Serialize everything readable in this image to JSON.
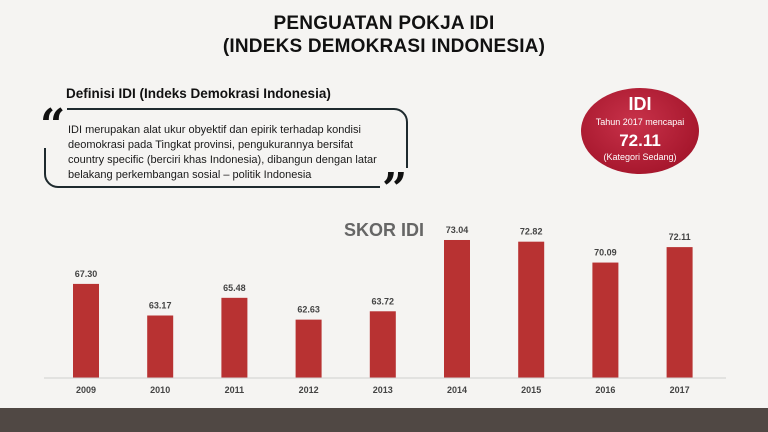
{
  "header": {
    "title_line1": "PENGUATAN POKJA IDI",
    "title_line2": "(INDEKS DEMOKRASI INDONESIA)"
  },
  "definition": {
    "heading": "Definisi IDI (Indeks Demokrasi Indonesia)",
    "text": "IDI merupakan alat ukur obyektif dan epirik terhadap kondisi deomokrasi pada Tingkat provinsi, pengukurannya bersifat country specific (berciri khas Indonesia), dibangun dengan latar belakang perkembangan sosial – politik Indonesia",
    "open_quote": "“",
    "close_quote": "”"
  },
  "highlight": {
    "label": "IDI",
    "subtitle": "Tahun 2017 mencapai",
    "value": "72.11",
    "category": "(Kategori Sedang)",
    "color": "#a8182e"
  },
  "chart_data": {
    "type": "bar",
    "title": "SKOR IDI",
    "categories": [
      "2009",
      "2010",
      "2011",
      "2012",
      "2013",
      "2014",
      "2015",
      "2016",
      "2017"
    ],
    "values": [
      67.3,
      63.17,
      65.48,
      62.63,
      63.72,
      73.04,
      72.82,
      70.09,
      72.11
    ],
    "value_labels": [
      "67.30",
      "63.17",
      "65.48",
      "62.63",
      "63.72",
      "73.04",
      "72.82",
      "70.09",
      "72.11"
    ],
    "ylim": [
      55,
      75
    ],
    "bar_color": "#b83232",
    "grid": false
  }
}
